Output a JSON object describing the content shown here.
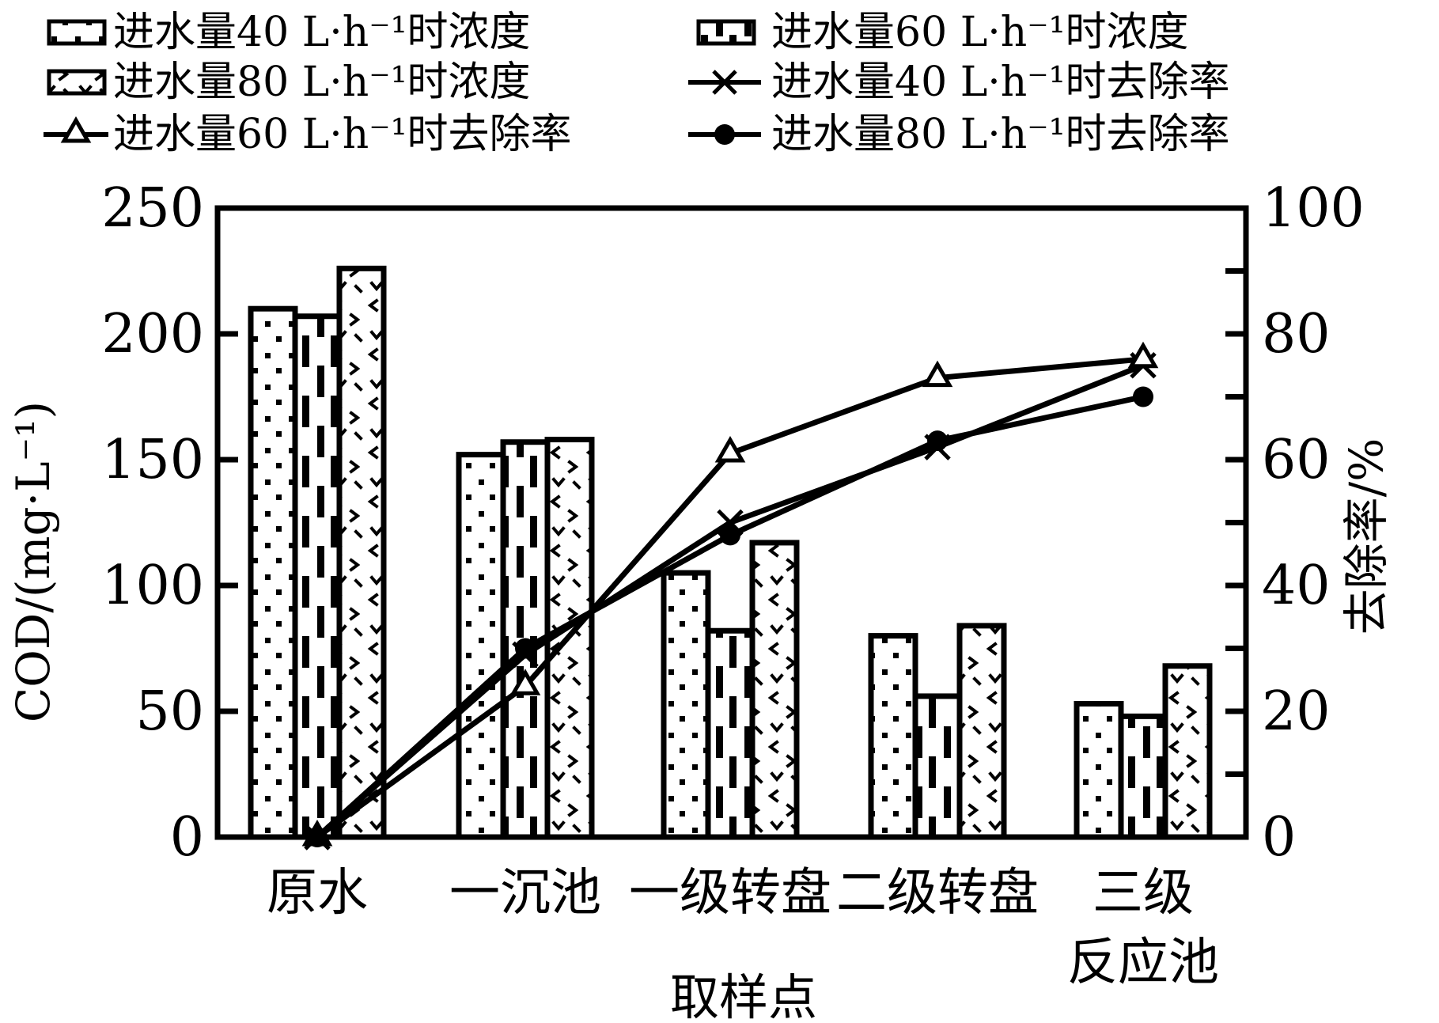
{
  "colors": {
    "foreground": "#000000",
    "background": "#ffffff"
  },
  "legend": {
    "items": [
      {
        "label": "进水量40 L·h⁻¹时浓度",
        "swatch": "bar-dotted"
      },
      {
        "label": "进水量60 L·h⁻¹时浓度",
        "swatch": "bar-vertical-dashes"
      },
      {
        "label": "进水量80 L·h⁻¹时浓度",
        "swatch": "bar-pebbles"
      },
      {
        "label": "进水量40 L·h⁻¹时去除率",
        "swatch": "line-x-cross"
      },
      {
        "label": "进水量60 L·h⁻¹时去除率",
        "swatch": "line-open-triangle"
      },
      {
        "label": "进水量80 L·h⁻¹时去除率",
        "swatch": "line-filled-circle"
      }
    ]
  },
  "chart_data": {
    "type": "bar+line",
    "categories": [
      "原水",
      "一沉池",
      "一级转盘",
      "二级转盘",
      "三级\n反应池"
    ],
    "bar_series": [
      {
        "name": "进水量40 L·h⁻¹时浓度",
        "pattern": "dots",
        "values": [
          210,
          152,
          105,
          80,
          53
        ]
      },
      {
        "name": "进水量60 L·h⁻¹时浓度",
        "pattern": "vertical-dashes",
        "values": [
          207,
          157,
          82,
          56,
          48
        ]
      },
      {
        "name": "进水量80 L·h⁻¹时浓度",
        "pattern": "pebbles",
        "values": [
          226,
          158,
          117,
          84,
          68
        ]
      }
    ],
    "line_series": [
      {
        "name": "进水量40 L·h⁻¹时去除率",
        "marker": "x-cross",
        "values": [
          0,
          29,
          50,
          62,
          75
        ]
      },
      {
        "name": "进水量60 L·h⁻¹时去除率",
        "marker": "open-triangle",
        "values": [
          0,
          24,
          61,
          73,
          76
        ]
      },
      {
        "name": "进水量80 L·h⁻¹时去除率",
        "marker": "filled-circle",
        "values": [
          0,
          30,
          48,
          63,
          70
        ]
      }
    ],
    "left_axis": {
      "label": "COD/(mg·L⁻¹)",
      "min": 0,
      "max": 250,
      "tick_step": 50,
      "ticks": [
        "0",
        "50",
        "100",
        "150",
        "200",
        "250"
      ]
    },
    "right_axis": {
      "label": "去除率/%",
      "min": 0,
      "max": 100,
      "label_step": 20,
      "minor_tick_step": 10,
      "ticks": [
        "0",
        "20",
        "40",
        "60",
        "80",
        "100"
      ]
    },
    "x_axis": {
      "label": "取样点"
    },
    "grid": false,
    "legend_position": "top"
  }
}
